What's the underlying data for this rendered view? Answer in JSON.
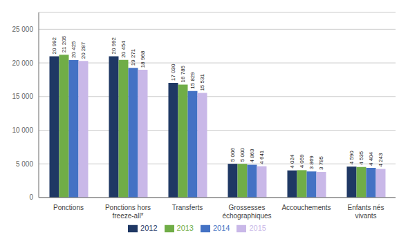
{
  "chart_data": {
    "type": "bar",
    "categories": [
      "Ponctions",
      "Ponctions hors\nfreeze-all*",
      "Transferts",
      "Grossesses\néchographiques",
      "Accouchements",
      "Enfants nés\nvivants"
    ],
    "series": [
      {
        "name": "2012",
        "color": "#1f3864",
        "values": [
          20992,
          20992,
          17030,
          5006,
          4024,
          4590
        ],
        "value_labels": [
          "20 992",
          "20 992",
          "17 030",
          "5 006",
          "4 024",
          "4 590"
        ]
      },
      {
        "name": "2013",
        "color": "#70ad47",
        "values": [
          21205,
          20454,
          16785,
          5000,
          4059,
          4535
        ],
        "value_labels": [
          "21 205",
          "20 454",
          "16 785",
          "5 000",
          "4 059",
          "4 535"
        ]
      },
      {
        "name": "2014",
        "color": "#4472c4",
        "values": [
          20425,
          19271,
          15829,
          4863,
          3869,
          4404
        ],
        "value_labels": [
          "20 425",
          "19 271",
          "15 829",
          "4 863",
          "3 869",
          "4 404"
        ]
      },
      {
        "name": "2015",
        "color": "#c9b8e8",
        "values": [
          20287,
          18968,
          15531,
          4641,
          3785,
          4243
        ],
        "value_labels": [
          "20 287",
          "18 968",
          "15 531",
          "4 641",
          "3 785",
          "4 243"
        ]
      }
    ],
    "ylim": [
      0,
      27500
    ],
    "yticks": [
      0,
      {
        "value": 5000,
        "label": "5 000"
      },
      {
        "value": 10000,
        "label": "10 000"
      },
      {
        "value": 15000,
        "label": "15 000"
      },
      {
        "value": 20000,
        "label": "20 000"
      },
      {
        "value": 25000,
        "label": "25 000"
      }
    ],
    "grid": true,
    "legend": "bottom",
    "data_labels": true
  }
}
